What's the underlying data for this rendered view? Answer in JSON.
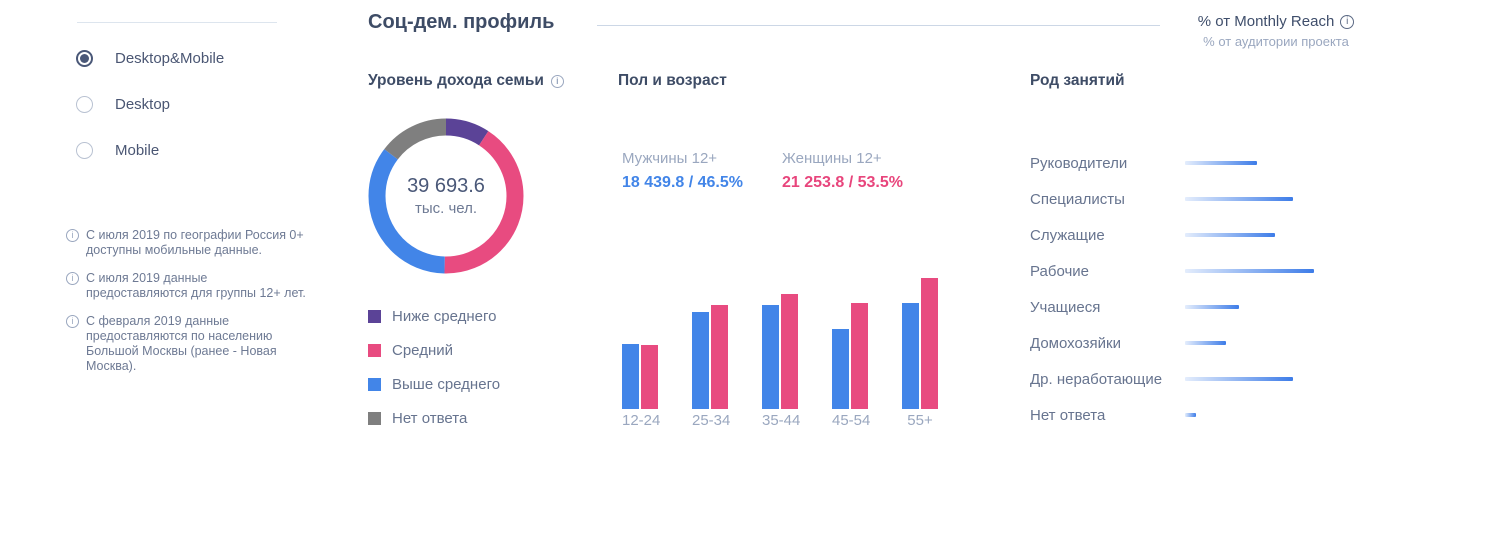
{
  "colors": {
    "blue": "#4285e8",
    "pink": "#e84b80",
    "purple": "#5b4397",
    "gray": "#7f7f7f",
    "bar_gradient_start": "#e4edfc",
    "bar_gradient_end": "#3d7ce8"
  },
  "sidebar": {
    "options": [
      {
        "label": "Desktop&Mobile",
        "selected": true
      },
      {
        "label": "Desktop",
        "selected": false
      },
      {
        "label": "Mobile",
        "selected": false
      }
    ],
    "notes": [
      "С июля 2019 по географии Россия 0+ доступны мобильные данные.",
      "С июля 2019 данные предоставляются для группы 12+ лет.",
      "С февраля 2019 данные предоставляются по населению Большой Москвы (ранее - Новая Москва)."
    ]
  },
  "header": {
    "title": "Соц-дем. профиль",
    "reach_label": "% от Monthly Reach",
    "reach_sublabel": "% от аудитории проекта"
  },
  "income": {
    "title": "Уровень дохода семьи",
    "total_value": "39 693.6",
    "total_unit": "тыс. чел."
  },
  "gender": {
    "title": "Пол и возраст",
    "male_label": "Мужчины 12+",
    "male_value": "18 439.8 / 46.5%",
    "female_label": "Женщины 12+",
    "female_value": "21 253.8 / 53.5%"
  },
  "occupation": {
    "title": "Род занятий"
  },
  "chart_data": [
    {
      "type": "pie",
      "title": "Уровень дохода семьи",
      "center_label": "39 693.6 тыс. чел.",
      "segments": [
        {
          "label": "Ниже среднего",
          "pct": 9.2,
          "color": "#5b4397"
        },
        {
          "label": "Средний",
          "pct": 41.1,
          "color": "#e84b80"
        },
        {
          "label": "Выше среднего",
          "pct": 35.0,
          "color": "#4285e8"
        },
        {
          "label": "Нет ответа",
          "pct": 14.7,
          "color": "#7f7f7f"
        }
      ],
      "legend_position": "bottom"
    },
    {
      "type": "bar",
      "title": "Пол и возраст",
      "categories": [
        "12-24",
        "25-34",
        "35-44",
        "45-54",
        "55+"
      ],
      "series": [
        {
          "name": "Мужчины 12+",
          "color": "#4285e8",
          "values": [
            6.7,
            10.0,
            10.7,
            8.2,
            10.9
          ],
          "total": "18 439.8 / 46.5%"
        },
        {
          "name": "Женщины 12+",
          "color": "#e84b80",
          "values": [
            6.6,
            10.7,
            11.9,
            10.9,
            13.5
          ],
          "total": "21 253.8 / 53.5%"
        }
      ],
      "ylabel": "% от Monthly Reach",
      "ylim": [
        0,
        14
      ],
      "grid": false
    },
    {
      "type": "bar",
      "orientation": "horizontal",
      "title": "Род занятий",
      "categories": [
        "Руководители",
        "Специалисты",
        "Служащие",
        "Рабочие",
        "Учащиеся",
        "Домохозяйки",
        "Др. неработающие",
        "Нет ответа"
      ],
      "values": [
        11.7,
        17.6,
        14.7,
        21.0,
        8.8,
        6.7,
        17.6,
        1.8
      ],
      "xlabel": "% от Monthly Reach",
      "xlim": [
        0,
        22
      ],
      "grid": false
    }
  ]
}
